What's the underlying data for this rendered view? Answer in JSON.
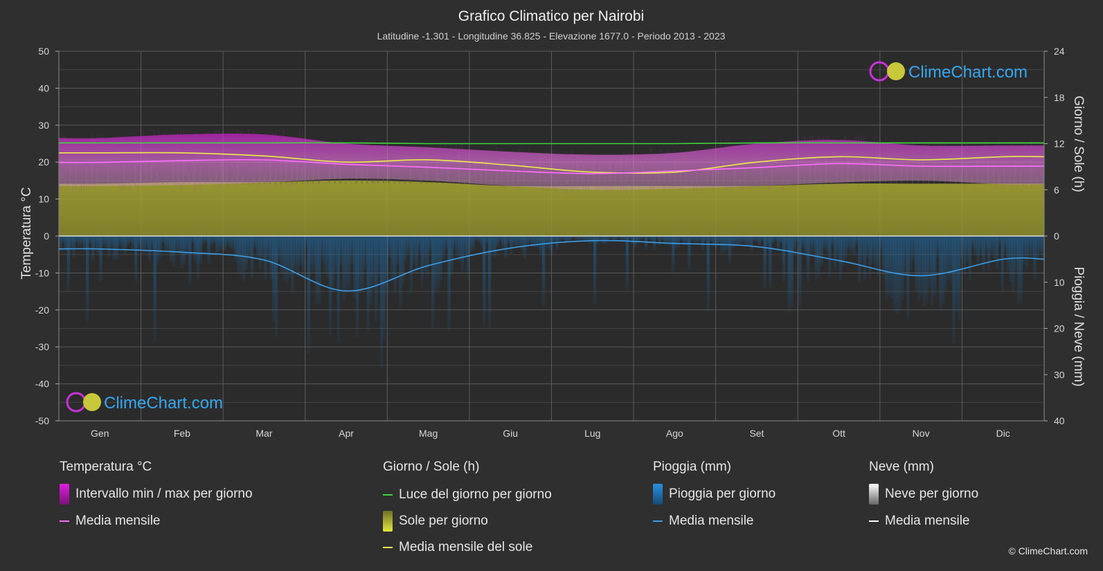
{
  "title": "Grafico Climatico per Nairobi",
  "subtitle": "Latitudine -1.301 - Longitudine 36.825 - Elevazione 1677.0 - Periodo 2013 - 2023",
  "watermark": "ClimeChart.com",
  "copyright": "© ClimeChart.com",
  "colors": {
    "background": "#2f2f2f",
    "temp_range": "#c819c8",
    "temp_mean": "#ff6fff",
    "daylight": "#3fd43f",
    "sun": "#b9b93a",
    "sun_mean": "#eded4a",
    "rain": "#1f7fc8",
    "rain_mean": "#3a9ee8",
    "snow": "#cccccc",
    "snow_mean": "#ffffff",
    "watermark": "#35a7f0"
  },
  "chart_data": {
    "type": "area",
    "x_categories": [
      "Gen",
      "Feb",
      "Mar",
      "Apr",
      "Mag",
      "Giu",
      "Lug",
      "Ago",
      "Set",
      "Ott",
      "Nov",
      "Dic"
    ],
    "y_left": {
      "label": "Temperatura °C",
      "range": [
        -50,
        50
      ],
      "ticks": [
        "50",
        "40",
        "30",
        "20",
        "10",
        "0",
        "-10",
        "-20",
        "-30",
        "-40",
        "-50"
      ]
    },
    "y_right_top": {
      "label": "Giorno / Sole (h)",
      "range": [
        0,
        24
      ],
      "ticks": [
        "24",
        "18",
        "12",
        "6",
        "0"
      ]
    },
    "y_right_bottom": {
      "label": "Pioggia / Neve (mm)",
      "range": [
        0,
        40
      ],
      "ticks": [
        "0",
        "10",
        "20",
        "30",
        "40"
      ]
    },
    "grid": true,
    "series": [
      {
        "name": "Intervallo min / max per giorno",
        "unit": "°C",
        "min": [
          13.5,
          13.8,
          14.5,
          15.5,
          15.0,
          13.5,
          12.5,
          12.8,
          13.5,
          14.5,
          15.0,
          14.0
        ],
        "max": [
          26.5,
          27.5,
          27.5,
          25.0,
          24.0,
          22.8,
          22.0,
          22.5,
          25.0,
          26.0,
          24.5,
          24.5
        ]
      },
      {
        "name": "Media mensile",
        "unit": "°C",
        "values": [
          19.9,
          20.4,
          20.6,
          19.4,
          18.6,
          17.6,
          16.9,
          17.6,
          18.5,
          19.6,
          18.9,
          18.9
        ]
      },
      {
        "name": "Luce del giorno per giorno",
        "unit": "h",
        "values": [
          12.1,
          12.1,
          12.1,
          12.1,
          12.0,
          12.0,
          12.0,
          12.0,
          12.1,
          12.1,
          12.1,
          12.1
        ]
      },
      {
        "name": "Sole per giorno",
        "unit": "h",
        "values": [
          6.8,
          7.0,
          7.0,
          7.2,
          7.0,
          6.5,
          6.5,
          6.5,
          6.5,
          6.8,
          6.8,
          6.8
        ]
      },
      {
        "name": "Media mensile del sole",
        "unit": "h",
        "values": [
          10.8,
          10.8,
          10.4,
          9.6,
          9.9,
          9.2,
          8.3,
          8.3,
          9.6,
          10.3,
          9.9,
          10.3
        ]
      },
      {
        "name": "Pioggia per giorno",
        "unit": "mm"
      },
      {
        "name": "Media mensile",
        "unit": "mm",
        "values": [
          2.8,
          3.5,
          5.2,
          11.9,
          6.4,
          2.6,
          1.0,
          1.6,
          2.3,
          5.3,
          8.6,
          5.0
        ]
      },
      {
        "name": "Neve per giorno",
        "unit": "mm"
      },
      {
        "name": "Media mensile",
        "unit": "mm",
        "values": [
          0,
          0,
          0,
          0,
          0,
          0,
          0,
          0,
          0,
          0,
          0,
          0
        ]
      }
    ]
  },
  "legend": {
    "temperature": {
      "heading": "Temperatura °C",
      "range_label": "Intervallo min / max per giorno",
      "mean_label": "Media mensile"
    },
    "day_sun": {
      "heading": "Giorno / Sole (h)",
      "daylight_label": "Luce del giorno per giorno",
      "sun_label": "Sole per giorno",
      "sun_mean_label": "Media mensile del sole"
    },
    "rain": {
      "heading": "Pioggia (mm)",
      "rain_label": "Pioggia per giorno",
      "mean_label": "Media mensile"
    },
    "snow": {
      "heading": "Neve (mm)",
      "snow_label": "Neve per giorno",
      "mean_label": "Media mensile"
    }
  }
}
